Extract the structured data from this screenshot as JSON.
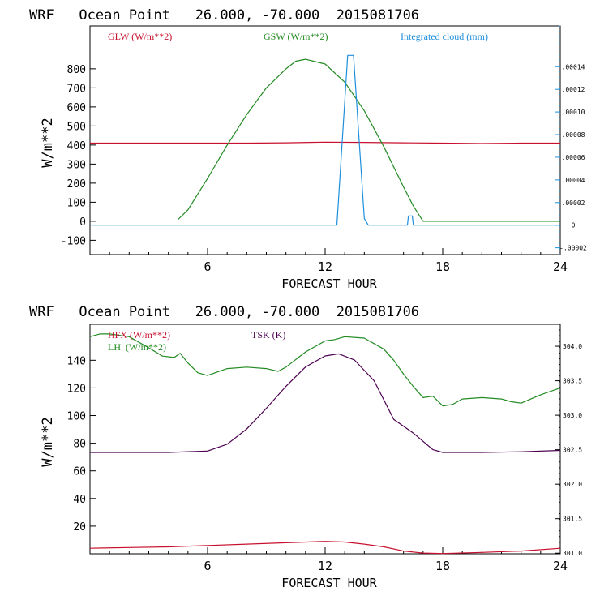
{
  "colors": {
    "axis": "#000000",
    "glw": "#c8102e",
    "gsw": "#228b22",
    "cloud": "#1f8fdc",
    "hfx": "#c8102e",
    "lh": "#228b22",
    "tsk": "#4b0050"
  },
  "chart_data": [
    {
      "type": "line",
      "title": "WRF   Ocean Point   26.000, -70.000  2015081706",
      "xlabel": "FORECAST HOUR",
      "ylabel": "W/m**2",
      "xlim": [
        0,
        24
      ],
      "ylim": [
        -175,
        1025
      ],
      "x_ticks": [
        6,
        12,
        18,
        24
      ],
      "x_tick_labels": [
        "6",
        "12",
        "18",
        "24"
      ],
      "y_ticks": [
        -100,
        0,
        100,
        200,
        300,
        400,
        500,
        600,
        700,
        800
      ],
      "y_tick_labels": [
        "-100",
        "0",
        "100",
        "200",
        "300",
        "400",
        "500",
        "600",
        "700",
        "800"
      ],
      "y2_label": "Integrated cloud (mm)",
      "y2lim": [
        -2.6e-05,
        0.000176
      ],
      "y2_ticks": [
        -2e-05,
        0,
        2e-05,
        4e-05,
        6e-05,
        8e-05,
        0.0001,
        0.00012,
        0.00014
      ],
      "y2_tick_labels": [
        "-.00002",
        "0",
        ".00002",
        ".00004",
        ".00006",
        ".00008",
        ".00010",
        ".00012",
        ".00014"
      ],
      "legend": [
        {
          "name": "GLW (W/m**2)",
          "color_key": "glw"
        },
        {
          "name": "GSW (W/m**2)",
          "color_key": "gsw"
        },
        {
          "name": "Integrated cloud (mm)",
          "color_key": "cloud"
        }
      ],
      "series": [
        {
          "name": "GLW (W/m**2)",
          "axis": "left",
          "color_key": "glw",
          "x": [
            0,
            4,
            8,
            10,
            12,
            14,
            16,
            18,
            20,
            22,
            24
          ],
          "y": [
            410,
            410,
            410,
            412,
            415,
            414,
            412,
            410,
            408,
            410,
            410
          ]
        },
        {
          "name": "GSW (W/m**2)",
          "axis": "left",
          "color_key": "gsw",
          "x": [
            4.5,
            5,
            6,
            7,
            8,
            9,
            10,
            10.5,
            11,
            12,
            13,
            14,
            15,
            16,
            16.5,
            17,
            24
          ],
          "y": [
            10,
            60,
            225,
            400,
            560,
            700,
            800,
            840,
            850,
            825,
            730,
            580,
            390,
            180,
            80,
            0,
            0
          ]
        },
        {
          "name": "Integrated cloud (mm)",
          "axis": "right",
          "color_key": "cloud",
          "x": [
            0,
            12.6,
            13.15,
            13.3,
            13.45,
            14,
            14.2,
            16.2,
            16.25,
            16.45,
            16.5,
            24
          ],
          "y": [
            0,
            0,
            0.00015,
            0.00015,
            0.00015,
            6e-06,
            0,
            0,
            8.2e-06,
            8.2e-06,
            0,
            0
          ]
        }
      ]
    },
    {
      "type": "line",
      "title": "WRF   Ocean Point   26.000, -70.000  2015081706",
      "xlabel": "FORECAST HOUR",
      "ylabel": "W/m**2",
      "xlim": [
        0,
        24
      ],
      "ylim": [
        0,
        166
      ],
      "x_ticks": [
        6,
        12,
        18,
        24
      ],
      "x_tick_labels": [
        "6",
        "12",
        "18",
        "24"
      ],
      "y_ticks": [
        20,
        40,
        60,
        80,
        100,
        120,
        140
      ],
      "y_tick_labels": [
        "20",
        "40",
        "60",
        "80",
        "100",
        "120",
        "140"
      ],
      "y2_label": "TSK (K)",
      "y2lim": [
        300.991,
        304.318
      ],
      "y2_ticks": [
        301.0,
        301.5,
        302.0,
        302.5,
        303.0,
        303.5,
        304.0
      ],
      "y2_tick_labels": [
        "301.0",
        "301.5",
        "302.0",
        "302.5",
        "303.0",
        "303.5",
        "304.0"
      ],
      "legend": [
        {
          "name": "HFX (W/m**2)",
          "color_key": "hfx"
        },
        {
          "name": "LH  (W/m**2)",
          "color_key": "lh"
        },
        {
          "name": "TSK (K)",
          "color_key": "tsk"
        }
      ],
      "series": [
        {
          "name": "HFX (W/m**2)",
          "axis": "left",
          "color_key": "hfx",
          "x": [
            0,
            2,
            4,
            6,
            8,
            10,
            12,
            13,
            14,
            15,
            16,
            17,
            18,
            20,
            22,
            24
          ],
          "y": [
            4,
            4.5,
            5,
            6,
            7,
            8,
            9,
            8.5,
            7,
            5,
            2,
            0.5,
            0.2,
            1,
            2,
            4
          ]
        },
        {
          "name": "LH  (W/m**2)",
          "axis": "left",
          "color_key": "lh",
          "x": [
            0,
            0.5,
            1,
            2,
            3,
            3.7,
            4.3,
            4.6,
            5,
            5.5,
            6,
            7,
            8,
            9,
            9.6,
            10,
            11,
            12,
            12.5,
            13,
            14,
            15,
            15.5,
            16,
            16.5,
            17,
            17.5,
            18,
            18.5,
            19,
            20,
            21,
            21.5,
            22,
            23,
            24
          ],
          "y": [
            157,
            159,
            159,
            157,
            149,
            143,
            142,
            145,
            138,
            131,
            129,
            134,
            135,
            134,
            132,
            135,
            146,
            154,
            155,
            157,
            156,
            148,
            140,
            130,
            121,
            113,
            114,
            107,
            108,
            112,
            113,
            112,
            110,
            109,
            115,
            120
          ]
        },
        {
          "name": "TSK (K)",
          "axis": "right",
          "color_key": "tsk",
          "x": [
            0,
            2,
            4,
            6,
            7,
            8,
            9,
            10,
            11,
            12,
            12.7,
            13.5,
            14.5,
            15.5,
            16.5,
            17.5,
            18,
            20,
            22,
            24
          ],
          "y": [
            302.46,
            302.46,
            302.46,
            302.48,
            302.58,
            302.8,
            303.1,
            303.42,
            303.7,
            303.86,
            303.89,
            303.8,
            303.5,
            302.94,
            302.74,
            302.5,
            302.46,
            302.46,
            302.47,
            302.49
          ]
        }
      ]
    }
  ]
}
